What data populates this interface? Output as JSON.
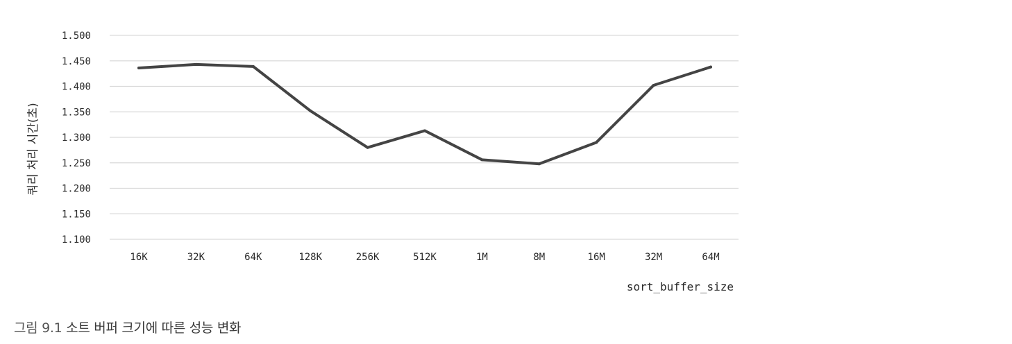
{
  "chart_data": {
    "type": "line",
    "categories": [
      "16K",
      "32K",
      "64K",
      "128K",
      "256K",
      "512K",
      "1M",
      "8M",
      "16M",
      "32M",
      "64M"
    ],
    "series": [
      {
        "values": [
          1.436,
          1.443,
          1.439,
          1.352,
          1.28,
          1.313,
          1.256,
          1.248,
          1.29,
          1.402,
          1.438
        ]
      }
    ],
    "y_ticks": [
      "1.500",
      "1.450",
      "1.400",
      "1.350",
      "1.300",
      "1.250",
      "1.200",
      "1.150",
      "1.100"
    ],
    "ylim": [
      1.1,
      1.5
    ],
    "xlabel": "sort_buffer_size",
    "ylabel": "쿼리 처리 시간(초)",
    "grid": true,
    "line_color": "#444444",
    "grid_color": "#d9d9d9"
  },
  "caption": {
    "figure_number": "그림 9.1",
    "text": "소트 버퍼 크기에 따른 성능 변화"
  }
}
